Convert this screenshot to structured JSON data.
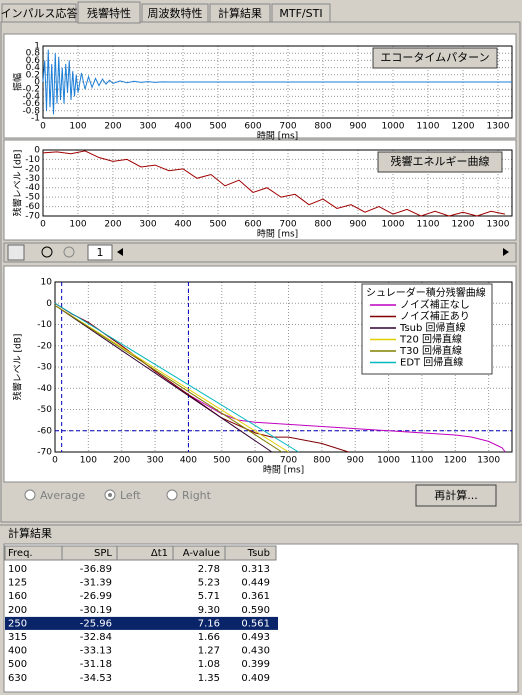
{
  "tabs": [
    "インパルス応答",
    "残響特性",
    "周波数特性",
    "計算結果",
    "MTF/STI"
  ],
  "selected_tab": 1,
  "chart_data": [
    {
      "type": "line",
      "title": "エコータイムパターン",
      "xlabel": "時間 [ms]",
      "ylabel": "振幅",
      "xlim": [
        0,
        1340
      ],
      "xticks": [
        0,
        100,
        200,
        300,
        400,
        500,
        600,
        700,
        800,
        900,
        1000,
        1100,
        1200,
        1300
      ],
      "ylim": [
        -1,
        1
      ],
      "yticks": [
        1,
        0.8,
        0.6,
        0.4,
        0.2,
        0,
        -0.2,
        -0.4,
        -0.6,
        -0.8,
        -1
      ],
      "grid": true,
      "series": [
        {
          "color": "#1e7fd6",
          "x": [
            0,
            5,
            10,
            15,
            20,
            25,
            30,
            35,
            40,
            45,
            50,
            55,
            60,
            65,
            70,
            75,
            80,
            85,
            90,
            95,
            100,
            110,
            120,
            130,
            140,
            150,
            160,
            170,
            180,
            190,
            200,
            220,
            240,
            260,
            280,
            300,
            320,
            340,
            360,
            1340
          ],
          "values": [
            0,
            0.6,
            -0.8,
            0.9,
            -0.7,
            0.5,
            -0.9,
            0.8,
            -0.6,
            0.7,
            -0.5,
            0.4,
            -0.6,
            0.5,
            -0.3,
            0.6,
            -0.5,
            0.3,
            -0.4,
            0.2,
            -0.3,
            0.25,
            -0.2,
            0.15,
            -0.15,
            0.1,
            -0.1,
            0.08,
            -0.06,
            0.05,
            -0.04,
            0.03,
            -0.02,
            0.02,
            -0.01,
            0.01,
            -0.01,
            0.005,
            0,
            0
          ]
        }
      ]
    },
    {
      "type": "line",
      "title": "残響エネルギー曲線",
      "xlabel": "時間 [ms]",
      "ylabel": "残響レベル [dB]",
      "xlim": [
        0,
        1340
      ],
      "xticks": [
        0,
        100,
        200,
        300,
        400,
        500,
        600,
        700,
        800,
        900,
        1000,
        1100,
        1200,
        1300
      ],
      "ylim": [
        -70,
        0
      ],
      "yticks": [
        0,
        -10,
        -20,
        -30,
        -40,
        -50,
        -60,
        -70
      ],
      "grid": true,
      "series": [
        {
          "color": "#a00000",
          "x": [
            0,
            40,
            80,
            120,
            160,
            200,
            240,
            280,
            320,
            360,
            400,
            440,
            480,
            520,
            560,
            600,
            640,
            680,
            720,
            760,
            800,
            840,
            880,
            920,
            960,
            1000,
            1040,
            1080,
            1120,
            1160,
            1200,
            1240,
            1280,
            1320
          ],
          "values": [
            -3,
            -2,
            -4,
            -1,
            -8,
            -12,
            -10,
            -18,
            -16,
            -22,
            -20,
            -30,
            -26,
            -38,
            -32,
            -45,
            -40,
            -50,
            -47,
            -58,
            -52,
            -62,
            -58,
            -66,
            -60,
            -68,
            -63,
            -70,
            -65,
            -70,
            -66,
            -70,
            -65,
            -68
          ]
        }
      ]
    },
    {
      "type": "line",
      "legend_title": "シュレーダー積分残響曲線",
      "xlabel": "時間 [ms]",
      "ylabel": "残響レベル [dB]",
      "xlim": [
        0,
        1370
      ],
      "xticks": [
        0,
        100,
        200,
        300,
        400,
        500,
        600,
        700,
        800,
        900,
        1000,
        1100,
        1200,
        1300
      ],
      "ylim": [
        -70,
        10
      ],
      "yticks": [
        10,
        0,
        -10,
        -20,
        -30,
        -40,
        -50,
        -60,
        -70
      ],
      "grid": true,
      "vlines": [
        20,
        400
      ],
      "hlines": [
        -60
      ],
      "series": [
        {
          "name": "ノイズ補正なし",
          "color": "#c000c0",
          "x": [
            0,
            20,
            50,
            100,
            200,
            300,
            400,
            500,
            550,
            600,
            700,
            800,
            900,
            1000,
            1100,
            1200,
            1250,
            1300,
            1340,
            1350
          ],
          "values": [
            0,
            -2,
            -5,
            -9,
            -20,
            -32,
            -43,
            -52,
            -55,
            -56,
            -57,
            -58,
            -59,
            -60,
            -61,
            -62,
            -63,
            -65,
            -68,
            -70
          ]
        },
        {
          "name": "ノイズ補正あり",
          "color": "#800000",
          "x": [
            0,
            20,
            50,
            100,
            200,
            300,
            400,
            500,
            600,
            650,
            700,
            800,
            880
          ],
          "values": [
            0,
            -2,
            -5,
            -9,
            -20,
            -32,
            -43,
            -54,
            -61,
            -63,
            -63,
            -66,
            -70
          ]
        },
        {
          "name": "Tsub 回帰直線",
          "color": "#300030",
          "x": [
            0,
            650
          ],
          "values": [
            -1,
            -70
          ]
        },
        {
          "name": "T20 回帰直線",
          "color": "#e0d000",
          "x": [
            0,
            700
          ],
          "values": [
            -1,
            -70
          ]
        },
        {
          "name": "T30 回帰直線",
          "color": "#808000",
          "x": [
            0,
            680
          ],
          "values": [
            -1,
            -70
          ]
        },
        {
          "name": "EDT 回帰直線",
          "color": "#00b8c0",
          "x": [
            0,
            730
          ],
          "values": [
            0,
            -70
          ]
        }
      ]
    }
  ],
  "page_field": "1",
  "radios": [
    "Average",
    "Left",
    "Right"
  ],
  "selected_radio": 1,
  "button": "再計算...",
  "results": {
    "title": "計算結果",
    "columns": [
      "Freq.",
      "SPL",
      "Δt1",
      "A-value",
      "Tsub"
    ],
    "selected_row": 4,
    "rows": [
      [
        "100",
        "-36.89",
        "",
        "2.78",
        "0.313"
      ],
      [
        "125",
        "-31.39",
        "",
        "5.23",
        "0.449"
      ],
      [
        "160",
        "-26.99",
        "",
        "5.71",
        "0.361"
      ],
      [
        "200",
        "-30.19",
        "",
        "9.30",
        "0.590"
      ],
      [
        "250",
        "-25.96",
        "",
        "7.16",
        "0.561"
      ],
      [
        "315",
        "-32.84",
        "",
        "1.66",
        "0.493"
      ],
      [
        "400",
        "-33.13",
        "",
        "1.27",
        "0.430"
      ],
      [
        "500",
        "-31.18",
        "",
        "1.08",
        "0.399"
      ],
      [
        "630",
        "-34.53",
        "",
        "1.35",
        "0.409"
      ]
    ]
  }
}
